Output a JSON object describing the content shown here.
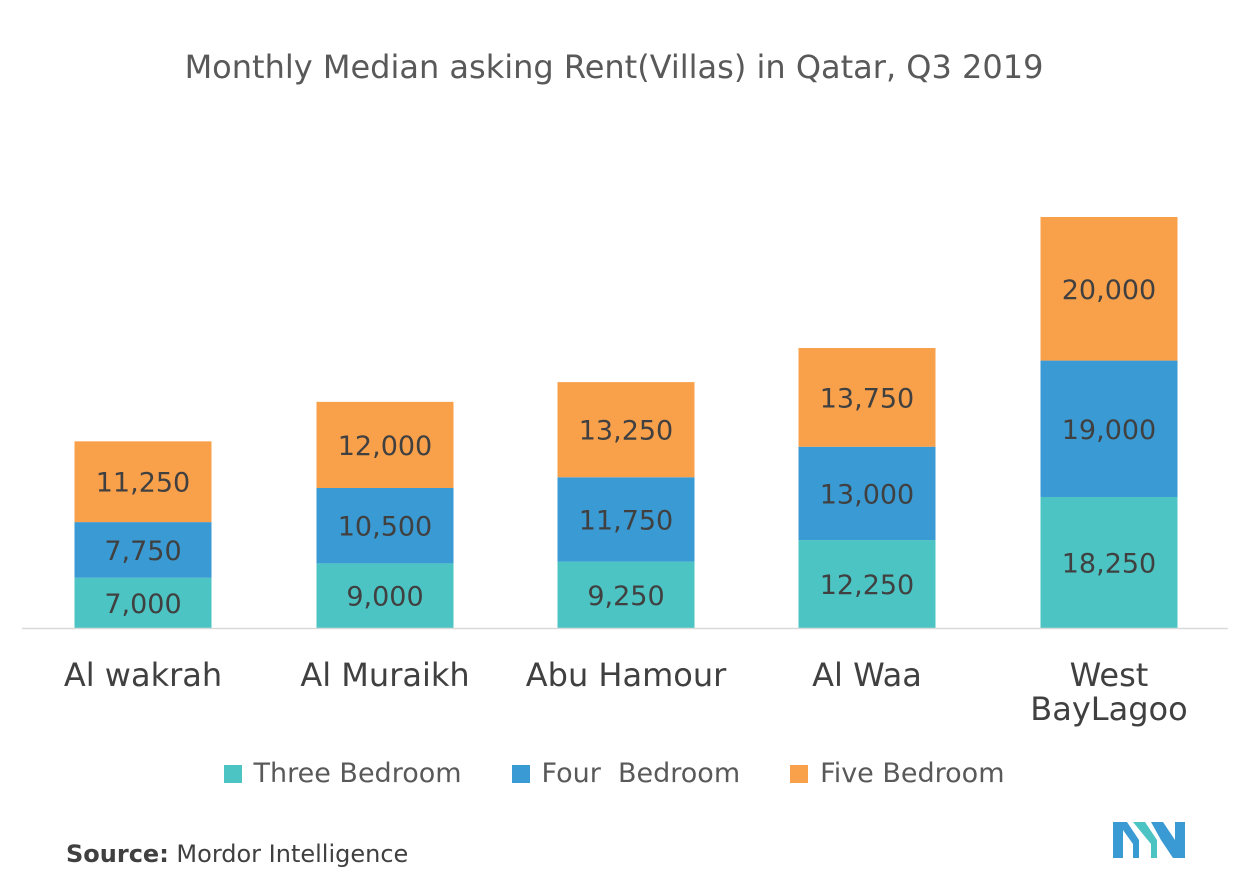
{
  "chart_data": {
    "type": "bar",
    "stacked": true,
    "title": "Monthly Median asking Rent(Villas) in Qatar, Q3 2019",
    "categories": [
      "Al wakrah",
      "Al Muraikh",
      "Abu Hamour",
      "Al Waa",
      "West BayLagoo"
    ],
    "category_lines": [
      [
        "Al wakrah"
      ],
      [
        "Al Muraikh"
      ],
      [
        "Abu Hamour"
      ],
      [
        "Al Waa"
      ],
      [
        "West",
        "BayLagoo"
      ]
    ],
    "series": [
      {
        "name": "Three Bedroom",
        "values": [
          7000,
          9000,
          9250,
          12250,
          18250
        ],
        "labels": [
          "7,000",
          "9,000",
          "9,250",
          "12,250",
          "18,250"
        ],
        "color": "#4dc4c4"
      },
      {
        "name": "Four  Bedroom",
        "values": [
          7750,
          10500,
          11750,
          13000,
          19000
        ],
        "labels": [
          "7,750",
          "10,500",
          "11,750",
          "13,000",
          "19,000"
        ],
        "color": "#3a9ad3"
      },
      {
        "name": "Five Bedroom",
        "values": [
          11250,
          12000,
          13250,
          13750,
          20000
        ],
        "labels": [
          "11,250",
          "12,000",
          "13,250",
          "13,750",
          "20,000"
        ],
        "color": "#f9a04b"
      }
    ],
    "legend_position": "bottom",
    "grid": false
  },
  "source": {
    "label": "Source:",
    "text": " Mordor Intelligence"
  },
  "logo": {
    "icon": "mordor-intelligence-logo-icon",
    "colors": [
      "#3a9ad3",
      "#4dc4c4"
    ]
  }
}
